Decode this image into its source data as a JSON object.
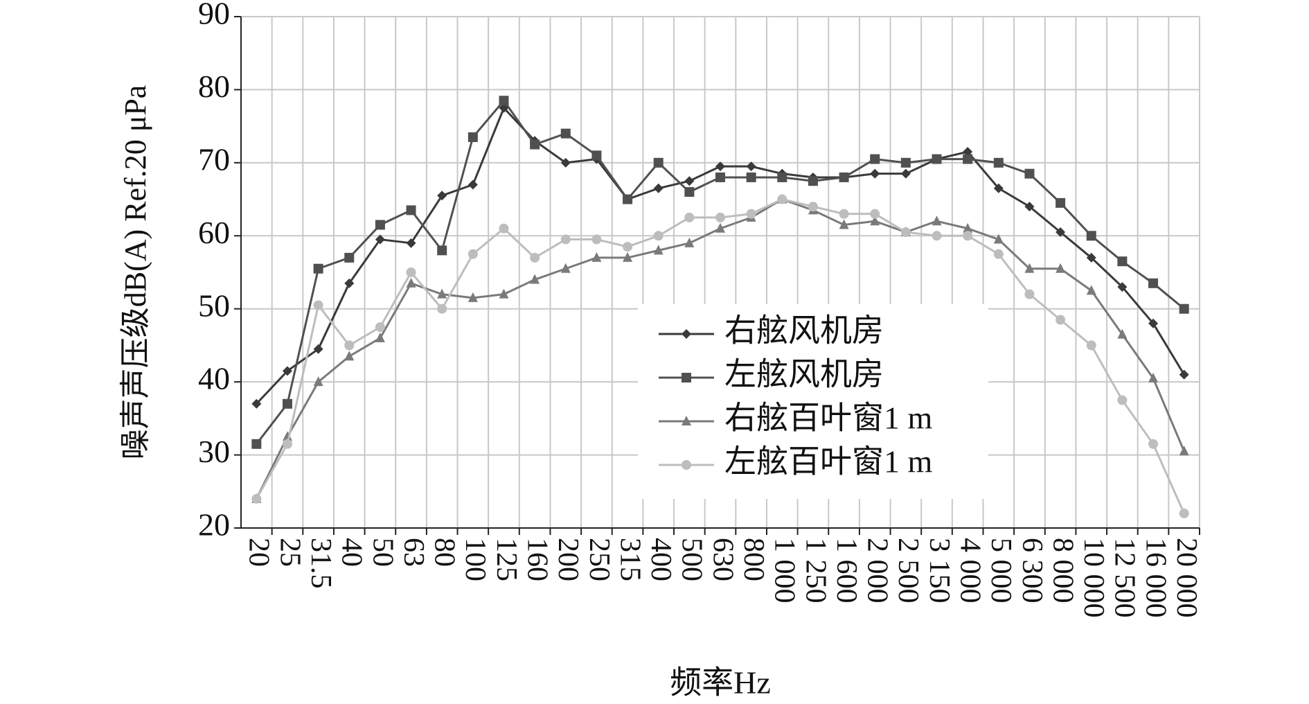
{
  "chart_data": {
    "type": "line",
    "x_label": "频率Hz",
    "y_label": "噪声声压级dB(A) Ref.20 μPa",
    "categories": [
      "20",
      "25",
      "31.5",
      "40",
      "50",
      "63",
      "80",
      "100",
      "125",
      "160",
      "200",
      "250",
      "315",
      "400",
      "500",
      "630",
      "800",
      "1 000",
      "1 250",
      "1 600",
      "2 000",
      "2 500",
      "3 150",
      "4 000",
      "5 000",
      "6 300",
      "8 000",
      "10 000",
      "12 500",
      "16 000",
      "20 000"
    ],
    "series": [
      {
        "name": "右舷风机房",
        "color": "#3a3a3a",
        "marker": "diamond",
        "values": [
          37,
          41.5,
          44.5,
          53.5,
          59.5,
          59,
          65.5,
          67,
          77.5,
          73,
          70,
          70.5,
          65,
          66.5,
          67.5,
          69.5,
          69.5,
          68.5,
          68,
          68,
          68.5,
          68.5,
          70.5,
          71.5,
          66.5,
          64,
          60.5,
          57,
          53,
          48,
          41
        ]
      },
      {
        "name": "左舷风机房",
        "color": "#505050",
        "marker": "square",
        "values": [
          31.5,
          37,
          55.5,
          57,
          61.5,
          63.5,
          58,
          73.5,
          78.5,
          72.5,
          74,
          71,
          65,
          70,
          66,
          68,
          68,
          68,
          67.5,
          68,
          70.5,
          70,
          70.5,
          70.5,
          70,
          68.5,
          64.5,
          60,
          56.5,
          53.5,
          50
        ]
      },
      {
        "name": "右舷百叶窗1 m",
        "color": "#7a7a7a",
        "marker": "triangle",
        "values": [
          24,
          32.5,
          40,
          43.5,
          46,
          53.5,
          52,
          51.5,
          52,
          54,
          55.5,
          57,
          57,
          58,
          59,
          61,
          62.5,
          65,
          63.5,
          61.5,
          62,
          60.5,
          62,
          61,
          59.5,
          55.5,
          55.5,
          52.5,
          46.5,
          40.5,
          30.5
        ]
      },
      {
        "name": "左舷百叶窗1 m",
        "color": "#bdbdbd",
        "marker": "circle",
        "values": [
          24,
          31.5,
          50.5,
          45,
          47.5,
          55,
          50,
          57.5,
          61,
          57,
          59.5,
          59.5,
          58.5,
          60,
          62.5,
          62.5,
          63,
          65,
          64,
          63,
          63,
          60.5,
          60,
          60,
          57.5,
          52,
          48.5,
          45,
          37.5,
          31.5,
          22
        ]
      }
    ],
    "ylim": [
      20,
      90
    ],
    "yticks": [
      20,
      30,
      40,
      50,
      60,
      70,
      80,
      90
    ],
    "grid": true
  }
}
